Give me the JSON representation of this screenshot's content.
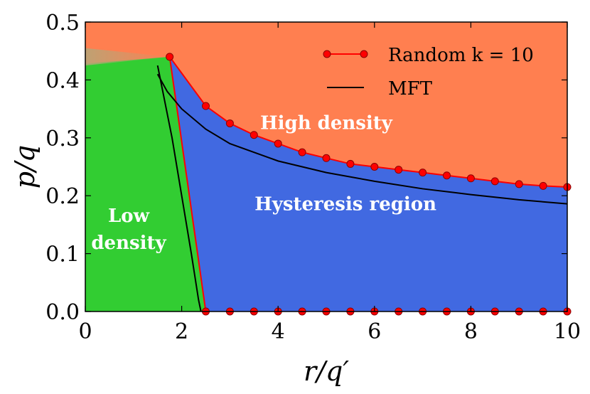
{
  "chart_data": {
    "type": "area",
    "xlabel": "r/q′",
    "ylabel": "p/q",
    "xlim": [
      0,
      10
    ],
    "ylim": [
      0,
      0.5
    ],
    "x_ticks": [
      "0",
      "2",
      "4",
      "6",
      "8",
      "10"
    ],
    "y_ticks": [
      "0.0",
      "0.1",
      "0.2",
      "0.3",
      "0.4",
      "0.5"
    ],
    "grid": false,
    "legend_position": "top-right",
    "colors": {
      "high_density": "#ff7f50",
      "low_density": "#32cd32",
      "hysteresis": "#4169e1",
      "random_series": "#ff0000",
      "mft_series": "#000000"
    },
    "regions": [
      {
        "name": "High density",
        "lines": [
          "High density"
        ]
      },
      {
        "name": "Hysteresis region",
        "lines": [
          "Hysteresis region"
        ]
      },
      {
        "name": "Low density",
        "lines": [
          "Low",
          "density"
        ]
      }
    ],
    "series": [
      {
        "name": "Random k = 10",
        "upper": {
          "x": [
            1.75,
            2.5,
            3.0,
            3.5,
            4.0,
            4.5,
            5.0,
            5.5,
            6.0,
            6.5,
            7.0,
            7.5,
            8.0,
            8.5,
            9.0,
            9.5,
            10.0
          ],
          "y": [
            0.44,
            0.355,
            0.325,
            0.305,
            0.29,
            0.275,
            0.265,
            0.255,
            0.25,
            0.245,
            0.24,
            0.235,
            0.23,
            0.225,
            0.22,
            0.217,
            0.215
          ]
        },
        "lower": {
          "x": [
            2.5,
            3.0,
            3.5,
            4.0,
            4.5,
            5.0,
            5.5,
            6.0,
            6.5,
            7.0,
            7.5,
            8.0,
            8.5,
            9.0,
            9.5,
            10.0
          ],
          "y": [
            0,
            0,
            0,
            0,
            0,
            0,
            0,
            0,
            0,
            0,
            0,
            0,
            0,
            0,
            0,
            0
          ]
        }
      },
      {
        "name": "MFT",
        "upper": {
          "x": [
            1.5,
            1.7,
            2.0,
            2.5,
            3.0,
            4.0,
            5.0,
            6.0,
            7.0,
            8.0,
            9.0,
            10.0
          ],
          "y": [
            0.41,
            0.38,
            0.35,
            0.315,
            0.29,
            0.26,
            0.24,
            0.225,
            0.212,
            0.202,
            0.193,
            0.186
          ]
        },
        "lower": {
          "x": [
            1.5,
            1.8,
            2.0,
            2.2,
            2.35,
            2.4
          ],
          "y": [
            0.425,
            0.3,
            0.2,
            0.1,
            0.02,
            0
          ]
        }
      }
    ]
  }
}
